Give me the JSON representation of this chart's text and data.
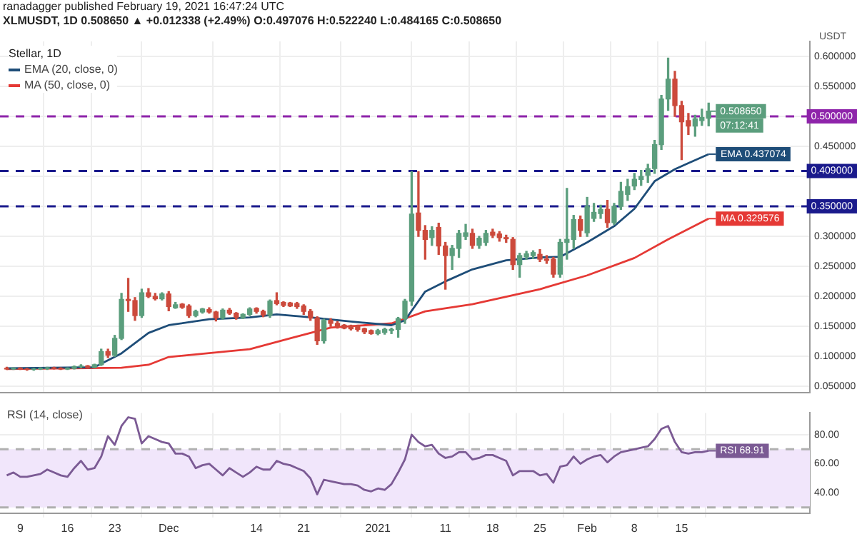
{
  "chart_data": [
    {
      "type": "candlestick",
      "title": "ranadagger published February 19, 2021 16:47:24 UTC",
      "subtitle": "XLMUSDT, 1D 0.508650 ▲ +0.012338 (+2.49%) O:0.497076 H:0.522240 L:0.484165 C:0.508650",
      "legend_title": "Stellar, 1D",
      "ylabel": "USDT",
      "x": [
        "2020-11-07",
        "2020-11-08",
        "2020-11-09",
        "2020-11-10",
        "2020-11-11",
        "2020-11-12",
        "2020-11-13",
        "2020-11-14",
        "2020-11-15",
        "2020-11-16",
        "2020-11-17",
        "2020-11-18",
        "2020-11-19",
        "2020-11-20",
        "2020-11-21",
        "2020-11-22",
        "2020-11-23",
        "2020-11-24",
        "2020-11-25",
        "2020-11-26",
        "2020-11-27",
        "2020-11-28",
        "2020-11-29",
        "2020-11-30",
        "2020-12-01",
        "2020-12-02",
        "2020-12-03",
        "2020-12-04",
        "2020-12-05",
        "2020-12-06",
        "2020-12-07",
        "2020-12-08",
        "2020-12-09",
        "2020-12-10",
        "2020-12-11",
        "2020-12-12",
        "2020-12-13",
        "2020-12-14",
        "2020-12-15",
        "2020-12-16",
        "2020-12-17",
        "2020-12-18",
        "2020-12-19",
        "2020-12-20",
        "2020-12-21",
        "2020-12-22",
        "2020-12-23",
        "2020-12-24",
        "2020-12-25",
        "2020-12-26",
        "2020-12-27",
        "2020-12-28",
        "2020-12-29",
        "2020-12-30",
        "2020-12-31",
        "2021-01-01",
        "2021-01-02",
        "2021-01-03",
        "2021-01-04",
        "2021-01-05",
        "2021-01-06",
        "2021-01-07",
        "2021-01-08",
        "2021-01-09",
        "2021-01-10",
        "2021-01-11",
        "2021-01-12",
        "2021-01-13",
        "2021-01-14",
        "2021-01-15",
        "2021-01-16",
        "2021-01-17",
        "2021-01-18",
        "2021-01-19",
        "2021-01-20",
        "2021-01-21",
        "2021-01-22",
        "2021-01-23",
        "2021-01-24",
        "2021-01-25",
        "2021-01-26",
        "2021-01-27",
        "2021-01-28",
        "2021-01-29",
        "2021-01-30",
        "2021-01-31",
        "2021-02-01",
        "2021-02-02",
        "2021-02-03",
        "2021-02-04",
        "2021-02-05",
        "2021-02-06",
        "2021-02-07",
        "2021-02-08",
        "2021-02-09",
        "2021-02-10",
        "2021-02-11",
        "2021-02-12",
        "2021-02-13",
        "2021-02-14",
        "2021-02-15",
        "2021-02-16",
        "2021-02-17",
        "2021-02-18",
        "2021-02-19"
      ],
      "ohlc": [
        [
          0.08,
          0.082,
          0.078,
          0.079
        ],
        [
          0.079,
          0.081,
          0.078,
          0.08
        ],
        [
          0.08,
          0.081,
          0.078,
          0.079
        ],
        [
          0.079,
          0.08,
          0.077,
          0.078
        ],
        [
          0.078,
          0.08,
          0.077,
          0.079
        ],
        [
          0.079,
          0.081,
          0.078,
          0.08
        ],
        [
          0.08,
          0.082,
          0.078,
          0.081
        ],
        [
          0.081,
          0.082,
          0.079,
          0.08
        ],
        [
          0.08,
          0.081,
          0.078,
          0.079
        ],
        [
          0.079,
          0.081,
          0.078,
          0.08
        ],
        [
          0.08,
          0.084,
          0.079,
          0.083
        ],
        [
          0.083,
          0.086,
          0.081,
          0.084
        ],
        [
          0.084,
          0.085,
          0.081,
          0.082
        ],
        [
          0.082,
          0.087,
          0.081,
          0.086
        ],
        [
          0.086,
          0.112,
          0.085,
          0.108
        ],
        [
          0.108,
          0.112,
          0.098,
          0.102
        ],
        [
          0.102,
          0.135,
          0.1,
          0.13
        ],
        [
          0.13,
          0.205,
          0.128,
          0.195
        ],
        [
          0.195,
          0.23,
          0.175,
          0.193
        ],
        [
          0.193,
          0.198,
          0.16,
          0.168
        ],
        [
          0.168,
          0.212,
          0.165,
          0.206
        ],
        [
          0.206,
          0.213,
          0.198,
          0.2
        ],
        [
          0.2,
          0.205,
          0.194,
          0.196
        ],
        [
          0.196,
          0.206,
          0.194,
          0.204
        ],
        [
          0.204,
          0.208,
          0.176,
          0.183
        ],
        [
          0.181,
          0.19,
          0.18,
          0.186
        ],
        [
          0.187,
          0.188,
          0.18,
          0.182
        ],
        [
          0.184,
          0.186,
          0.165,
          0.168
        ],
        [
          0.168,
          0.177,
          0.166,
          0.175
        ],
        [
          0.174,
          0.18,
          0.172,
          0.179
        ],
        [
          0.178,
          0.181,
          0.172,
          0.174
        ],
        [
          0.174,
          0.175,
          0.159,
          0.164
        ],
        [
          0.164,
          0.179,
          0.162,
          0.177
        ],
        [
          0.177,
          0.18,
          0.17,
          0.172
        ],
        [
          0.172,
          0.173,
          0.162,
          0.165
        ],
        [
          0.165,
          0.171,
          0.163,
          0.17
        ],
        [
          0.17,
          0.181,
          0.168,
          0.179
        ],
        [
          0.18,
          0.181,
          0.172,
          0.175
        ],
        [
          0.175,
          0.177,
          0.166,
          0.169
        ],
        [
          0.169,
          0.194,
          0.165,
          0.192
        ],
        [
          0.193,
          0.206,
          0.186,
          0.188
        ],
        [
          0.19,
          0.191,
          0.183,
          0.185
        ],
        [
          0.189,
          0.19,
          0.183,
          0.184
        ],
        [
          0.188,
          0.19,
          0.18,
          0.183
        ],
        [
          0.184,
          0.186,
          0.17,
          0.175
        ],
        [
          0.175,
          0.178,
          0.16,
          0.164
        ],
        [
          0.164,
          0.166,
          0.12,
          0.126
        ],
        [
          0.126,
          0.162,
          0.122,
          0.16
        ],
        [
          0.16,
          0.163,
          0.15,
          0.155
        ],
        [
          0.155,
          0.158,
          0.147,
          0.15
        ],
        [
          0.152,
          0.153,
          0.146,
          0.147
        ],
        [
          0.151,
          0.152,
          0.144,
          0.146
        ],
        [
          0.15,
          0.152,
          0.142,
          0.145
        ],
        [
          0.146,
          0.147,
          0.138,
          0.141
        ],
        [
          0.143,
          0.144,
          0.137,
          0.138
        ],
        [
          0.138,
          0.145,
          0.136,
          0.143
        ],
        [
          0.14,
          0.147,
          0.137,
          0.145
        ],
        [
          0.143,
          0.147,
          0.138,
          0.145
        ],
        [
          0.145,
          0.165,
          0.132,
          0.163
        ],
        [
          0.163,
          0.195,
          0.155,
          0.192
        ],
        [
          0.192,
          0.408,
          0.185,
          0.337
        ],
        [
          0.339,
          0.408,
          0.3,
          0.31
        ],
        [
          0.31,
          0.318,
          0.262,
          0.295
        ],
        [
          0.298,
          0.316,
          0.285,
          0.31
        ],
        [
          0.315,
          0.322,
          0.27,
          0.284
        ],
        [
          0.284,
          0.29,
          0.212,
          0.268
        ],
        [
          0.268,
          0.285,
          0.245,
          0.28
        ],
        [
          0.28,
          0.31,
          0.265,
          0.305
        ],
        [
          0.3,
          0.32,
          0.295,
          0.306
        ],
        [
          0.305,
          0.312,
          0.28,
          0.285
        ],
        [
          0.285,
          0.3,
          0.28,
          0.297
        ],
        [
          0.29,
          0.31,
          0.285,
          0.305
        ],
        [
          0.307,
          0.312,
          0.298,
          0.302
        ],
        [
          0.304,
          0.308,
          0.292,
          0.298
        ],
        [
          0.298,
          0.302,
          0.29,
          0.296
        ],
        [
          0.295,
          0.298,
          0.245,
          0.253
        ],
        [
          0.253,
          0.272,
          0.232,
          0.268
        ],
        [
          0.266,
          0.275,
          0.262,
          0.271
        ],
        [
          0.268,
          0.276,
          0.263,
          0.273
        ],
        [
          0.27,
          0.278,
          0.258,
          0.262
        ],
        [
          0.262,
          0.268,
          0.255,
          0.26
        ],
        [
          0.262,
          0.265,
          0.232,
          0.237
        ],
        [
          0.237,
          0.295,
          0.232,
          0.29
        ],
        [
          0.29,
          0.38,
          0.262,
          0.295
        ],
        [
          0.295,
          0.335,
          0.28,
          0.328
        ],
        [
          0.328,
          0.334,
          0.3,
          0.31
        ],
        [
          0.306,
          0.365,
          0.3,
          0.35
        ],
        [
          0.33,
          0.355,
          0.325,
          0.34
        ],
        [
          0.338,
          0.352,
          0.33,
          0.345
        ],
        [
          0.345,
          0.36,
          0.315,
          0.323
        ],
        [
          0.323,
          0.355,
          0.32,
          0.35
        ],
        [
          0.35,
          0.39,
          0.345,
          0.375
        ],
        [
          0.37,
          0.395,
          0.36,
          0.383
        ],
        [
          0.384,
          0.405,
          0.378,
          0.395
        ],
        [
          0.395,
          0.41,
          0.385,
          0.4
        ],
        [
          0.402,
          0.42,
          0.39,
          0.413
        ],
        [
          0.413,
          0.46,
          0.405,
          0.453
        ],
        [
          0.453,
          0.535,
          0.445,
          0.529
        ],
        [
          0.529,
          0.597,
          0.51,
          0.562
        ],
        [
          0.562,
          0.575,
          0.5,
          0.518
        ],
        [
          0.518,
          0.525,
          0.428,
          0.491
        ],
        [
          0.493,
          0.505,
          0.47,
          0.484
        ],
        [
          0.484,
          0.502,
          0.467,
          0.496
        ],
        [
          0.493,
          0.512,
          0.485,
          0.498
        ],
        [
          0.497076,
          0.52224,
          0.484165,
          0.50865
        ]
      ],
      "series": [
        {
          "name": "EMA (20, close, 0)",
          "type": "line",
          "color": "#1e4d78",
          "x": [
            "2020-11-07",
            "2020-11-20",
            "2020-11-24",
            "2020-11-28",
            "2020-12-01",
            "2020-12-07",
            "2020-12-13",
            "2020-12-17",
            "2020-12-21",
            "2020-12-28",
            "2021-01-03",
            "2021-01-05",
            "2021-01-08",
            "2021-01-11",
            "2021-01-15",
            "2021-01-20",
            "2021-01-25",
            "2021-01-28",
            "2021-02-01",
            "2021-02-05",
            "2021-02-08",
            "2021-02-11",
            "2021-02-14",
            "2021-02-16",
            "2021-02-19"
          ],
          "values": [
            0.08,
            0.082,
            0.105,
            0.139,
            0.152,
            0.162,
            0.165,
            0.17,
            0.166,
            0.158,
            0.152,
            0.16,
            0.208,
            0.225,
            0.245,
            0.26,
            0.265,
            0.266,
            0.29,
            0.317,
            0.346,
            0.392,
            0.412,
            0.422,
            0.437074
          ]
        },
        {
          "name": "MA (50, close, 0)",
          "type": "line",
          "color": "#e53935",
          "x": [
            "2020-11-07",
            "2020-11-24",
            "2020-11-28",
            "2020-12-01",
            "2020-12-13",
            "2020-12-19",
            "2020-12-25",
            "2021-01-03",
            "2021-01-08",
            "2021-01-15",
            "2021-01-25",
            "2021-02-01",
            "2021-02-08",
            "2021-02-13",
            "2021-02-19"
          ],
          "values": [
            0.079,
            0.081,
            0.086,
            0.099,
            0.112,
            0.13,
            0.148,
            0.155,
            0.175,
            0.187,
            0.212,
            0.235,
            0.264,
            0.295,
            0.329576
          ]
        }
      ],
      "xlim": [
        "2020-11-06",
        "2021-03-06"
      ],
      "xticks": [
        {
          "value": "2020-11-09",
          "label": null
        },
        {
          "value": "2020-11-16",
          "label": null
        },
        {
          "value": "2020-11-23",
          "label": null
        },
        {
          "value": "2020-12-01",
          "label": null
        },
        {
          "value": "2020-12-14",
          "label": null
        },
        {
          "value": "2020-12-21",
          "label": null
        },
        {
          "value": "2021-01-01",
          "label": null
        },
        {
          "value": "2021-01-11",
          "label": null
        },
        {
          "value": "2021-01-18",
          "label": null
        },
        {
          "value": "2021-01-25",
          "label": null
        },
        {
          "value": "2021-02-01",
          "label": null
        },
        {
          "value": "2021-02-08",
          "label": null
        },
        {
          "value": "2021-02-15",
          "label": null
        }
      ],
      "ylim": [
        0.04,
        0.625
      ],
      "yticks": [
        {
          "value": 0.05,
          "label": "0.050000"
        },
        {
          "value": 0.1,
          "label": "0.100000"
        },
        {
          "value": 0.15,
          "label": "0.150000"
        },
        {
          "value": 0.2,
          "label": "0.200000"
        },
        {
          "value": 0.25,
          "label": "0.250000"
        },
        {
          "value": 0.3,
          "label": "0.300000"
        },
        {
          "value": 0.35,
          "label": null
        },
        {
          "value": 0.4,
          "label": null
        },
        {
          "value": 0.45,
          "label": "0.450000"
        },
        {
          "value": 0.5,
          "label": null
        },
        {
          "value": 0.55,
          "label": "0.550000"
        },
        {
          "value": 0.6,
          "label": "0.600000"
        }
      ],
      "tick_labels": "y",
      "grid": true,
      "legend": "top left",
      "ref_lines": [
        {
          "axis": "y",
          "value": 0.5,
          "label": "0.500000",
          "color": "#8e24aa",
          "line_style": "dashed"
        },
        {
          "axis": "y",
          "value": 0.409,
          "label": "0.409000",
          "color": "#1a1a8c",
          "line_style": "dashed"
        },
        {
          "axis": "y",
          "value": 0.35,
          "label": "0.350000",
          "color": "#1a1a8c",
          "line_style": "dashed"
        }
      ],
      "annotations": [
        {
          "text": "0.508650",
          "x": "2021-02-19",
          "y": 0.50865
        },
        "07:12:41",
        {
          "text": "EMA 0.437074",
          "x": "2021-02-19",
          "y": 0.437074
        },
        {
          "text": "MA 0.329576",
          "x": "2021-02-19",
          "y": 0.329576
        }
      ]
    },
    {
      "type": "line",
      "title": "RSI (14, close)",
      "x": [
        "2020-11-07",
        "2020-11-08",
        "2020-11-09",
        "2020-11-10",
        "2020-11-11",
        "2020-11-12",
        "2020-11-13",
        "2020-11-14",
        "2020-11-15",
        "2020-11-16",
        "2020-11-17",
        "2020-11-18",
        "2020-11-19",
        "2020-11-20",
        "2020-11-21",
        "2020-11-22",
        "2020-11-23",
        "2020-11-24",
        "2020-11-25",
        "2020-11-26",
        "2020-11-27",
        "2020-11-28",
        "2020-11-29",
        "2020-11-30",
        "2020-12-01",
        "2020-12-02",
        "2020-12-03",
        "2020-12-04",
        "2020-12-05",
        "2020-12-06",
        "2020-12-07",
        "2020-12-08",
        "2020-12-09",
        "2020-12-10",
        "2020-12-11",
        "2020-12-12",
        "2020-12-13",
        "2020-12-14",
        "2020-12-15",
        "2020-12-16",
        "2020-12-17",
        "2020-12-18",
        "2020-12-19",
        "2020-12-20",
        "2020-12-21",
        "2020-12-22",
        "2020-12-23",
        "2020-12-24",
        "2020-12-25",
        "2020-12-26",
        "2020-12-27",
        "2020-12-28",
        "2020-12-29",
        "2020-12-30",
        "2020-12-31",
        "2021-01-01",
        "2021-01-02",
        "2021-01-03",
        "2021-01-04",
        "2021-01-05",
        "2021-01-06",
        "2021-01-07",
        "2021-01-08",
        "2021-01-09",
        "2021-01-10",
        "2021-01-11",
        "2021-01-12",
        "2021-01-13",
        "2021-01-14",
        "2021-01-15",
        "2021-01-16",
        "2021-01-17",
        "2021-01-18",
        "2021-01-19",
        "2021-01-20",
        "2021-01-21",
        "2021-01-22",
        "2021-01-23",
        "2021-01-24",
        "2021-01-25",
        "2021-01-26",
        "2021-01-27",
        "2021-01-28",
        "2021-01-29",
        "2021-01-30",
        "2021-01-31",
        "2021-02-01",
        "2021-02-02",
        "2021-02-03",
        "2021-02-04",
        "2021-02-05",
        "2021-02-06",
        "2021-02-07",
        "2021-02-08",
        "2021-02-09",
        "2021-02-10",
        "2021-02-11",
        "2021-02-12",
        "2021-02-13",
        "2021-02-14",
        "2021-02-15",
        "2021-02-16",
        "2021-02-17",
        "2021-02-18",
        "2021-02-19"
      ],
      "series": [
        {
          "color": "#7b5a94",
          "values": [
            52,
            54,
            51,
            51,
            52,
            53,
            56,
            54,
            52,
            51,
            57,
            62,
            56,
            57,
            65,
            79,
            73,
            86,
            92,
            91,
            74,
            79,
            77,
            75,
            74,
            67,
            67,
            65,
            57,
            59,
            60,
            56,
            52,
            57,
            54,
            51,
            54,
            58,
            56,
            56,
            62,
            60,
            59,
            57,
            55,
            50,
            39,
            49,
            48,
            47,
            46,
            46,
            45,
            42,
            41,
            43,
            42,
            46,
            54,
            63,
            80,
            75,
            72,
            73,
            67,
            64,
            65,
            68,
            68,
            63,
            64,
            66,
            66,
            64,
            62,
            52,
            55,
            55,
            55,
            52,
            53,
            47,
            58,
            59,
            65,
            60,
            63,
            65,
            66,
            61,
            65,
            68,
            69,
            70,
            71,
            72,
            77,
            84,
            86,
            75,
            68,
            67,
            68,
            68,
            68.91
          ]
        }
      ],
      "xlim": [
        "2020-11-06",
        "2021-03-06"
      ],
      "xticks": [
        {
          "value": "2020-11-09",
          "label": "9"
        },
        {
          "value": "2020-11-16",
          "label": "16"
        },
        {
          "value": "2020-11-23",
          "label": "23"
        },
        {
          "value": "2020-12-01",
          "label": "Dec"
        },
        {
          "value": "2020-12-14",
          "label": "14"
        },
        {
          "value": "2020-12-21",
          "label": "21"
        },
        {
          "value": "2021-01-01",
          "label": "2021"
        },
        {
          "value": "2021-01-11",
          "label": "11"
        },
        {
          "value": "2021-01-18",
          "label": "18"
        },
        {
          "value": "2021-01-25",
          "label": "25"
        },
        {
          "value": "2021-02-01",
          "label": "Feb"
        },
        {
          "value": "2021-02-08",
          "label": "8"
        },
        {
          "value": "2021-02-15",
          "label": "15"
        }
      ],
      "ylim": [
        26,
        95
      ],
      "yticks": [
        {
          "value": 40,
          "label": "40.00"
        },
        {
          "value": 60,
          "label": "60.00"
        },
        {
          "value": 80,
          "label": "80.00"
        }
      ],
      "grid": true,
      "bands": [
        {
          "axis": "y",
          "from": 30,
          "to": 70,
          "color": "#f1e6fb"
        }
      ],
      "ref_lines": [
        {
          "axis": "y",
          "value": 70,
          "color": "#b0b0b0",
          "line_style": "dashed"
        },
        {
          "axis": "y",
          "value": 30,
          "color": "#b0b0b0",
          "line_style": "dashed"
        }
      ],
      "annotations": [
        {
          "text": "RSI 68.91",
          "x": "2021-02-19",
          "y": 68.91
        }
      ]
    }
  ]
}
